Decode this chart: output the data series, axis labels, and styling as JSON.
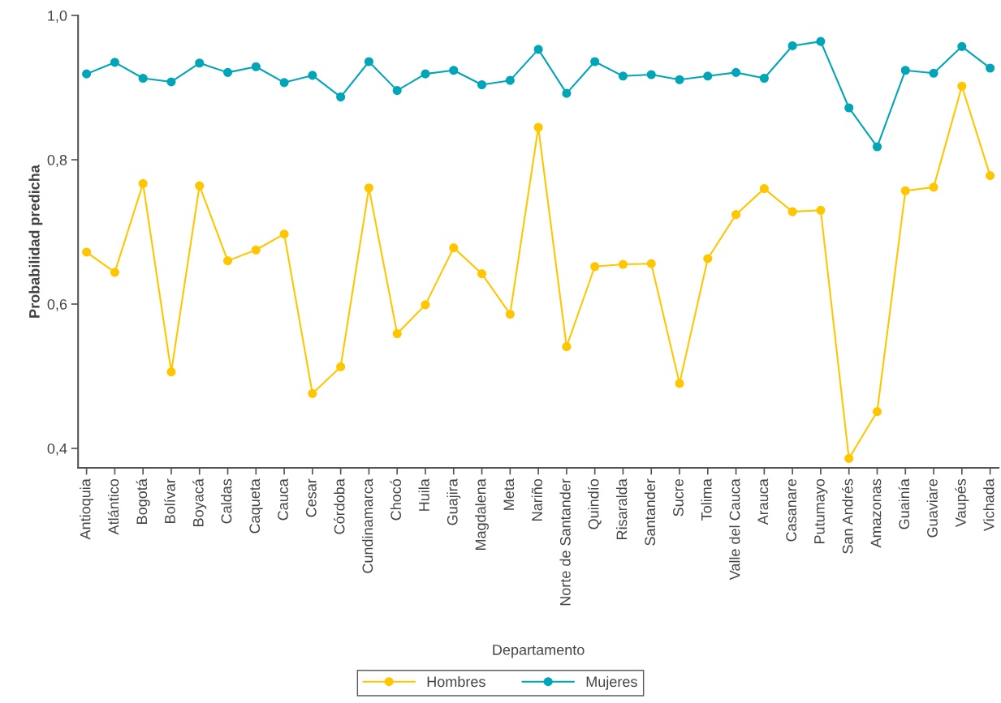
{
  "chart_data": {
    "type": "line",
    "xlabel": "Departamento",
    "ylabel": "Probabilidad predicha",
    "categories": [
      "Antioquia",
      "Atlántico",
      "Bogotá",
      "Bolívar",
      "Boyacá",
      "Caldas",
      "Caqueta",
      "Cauca",
      "Cesar",
      "Córdoba",
      "Cundinamarca",
      "Chocó",
      "Huila",
      "Guajira",
      "Magdalena",
      "Meta",
      "Nariño",
      "Norte de Santander",
      "Quindío",
      "Risaralda",
      "Santander",
      "Sucre",
      "Tolima",
      "Valle del Cauca",
      "Arauca",
      "Casanare",
      "Putumayo",
      "San Andrés",
      "Amazonas",
      "Guainía",
      "Guaviare",
      "Vaupés",
      "Vichada"
    ],
    "ylim": [
      0.373,
      1.0
    ],
    "yticks": [
      {
        "value": 0.4,
        "label": "0,4"
      },
      {
        "value": 0.6,
        "label": "0,6"
      },
      {
        "value": 0.8,
        "label": "0,8"
      },
      {
        "value": 1.0,
        "label": "1,0"
      }
    ],
    "series": [
      {
        "name": "Hombres",
        "color": "#ffc600",
        "values": [
          0.672,
          0.644,
          0.767,
          0.506,
          0.764,
          0.66,
          0.675,
          0.697,
          0.476,
          0.513,
          0.761,
          0.559,
          0.599,
          0.678,
          0.642,
          0.586,
          0.845,
          0.541,
          0.652,
          0.655,
          0.656,
          0.49,
          0.663,
          0.724,
          0.76,
          0.728,
          0.73,
          0.386,
          0.451,
          0.757,
          0.762,
          0.902,
          0.778
        ]
      },
      {
        "name": "Mujeres",
        "color": "#00a5b8",
        "values": [
          0.919,
          0.935,
          0.913,
          0.908,
          0.934,
          0.921,
          0.929,
          0.907,
          0.917,
          0.887,
          0.936,
          0.896,
          0.919,
          0.924,
          0.904,
          0.91,
          0.953,
          0.892,
          0.936,
          0.916,
          0.918,
          0.911,
          0.916,
          0.921,
          0.913,
          0.958,
          0.964,
          0.872,
          0.818,
          0.924,
          0.92,
          0.957,
          0.927
        ]
      }
    ],
    "marker": "circle",
    "line_style": "solid",
    "grid": false,
    "legend": "bottom"
  }
}
